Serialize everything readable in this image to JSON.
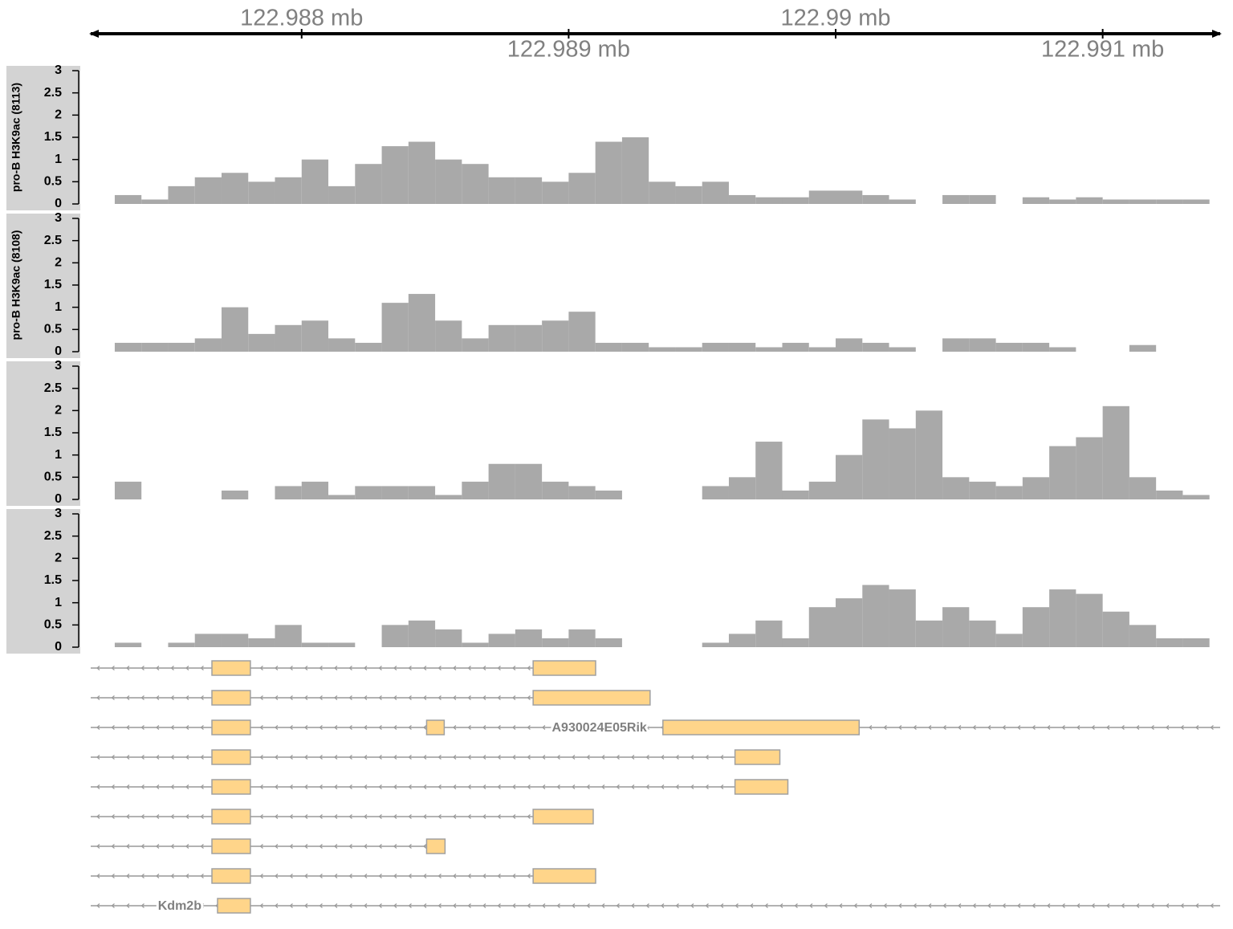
{
  "chart_data": [
    {
      "type": "axis",
      "xlim": [
        122.98721,
        122.99144
      ],
      "xticks": [
        {
          "value": 122.988,
          "label": "122.988 mb"
        },
        {
          "value": 122.989,
          "label": "122.989 mb"
        },
        {
          "value": 122.99,
          "label": "122.99 mb"
        },
        {
          "value": 122.991,
          "label": "122.991 mb"
        }
      ]
    },
    {
      "type": "histogram",
      "ylabel": "pro-B H3K9ac (8113)",
      "color": "#a9a9a9",
      "ylim": [
        0,
        3
      ],
      "yticks": [
        0,
        0.5,
        1,
        1.5,
        2,
        2.5,
        3
      ],
      "bins": [
        122.9873,
        122.9874,
        122.9875,
        122.9876,
        122.9877,
        122.9878,
        122.9879,
        122.988,
        122.9881,
        122.9882,
        122.9883,
        122.9884,
        122.9885,
        122.9886,
        122.9887,
        122.9888,
        122.9889,
        122.989,
        122.9891,
        122.9892,
        122.9893,
        122.9894,
        122.9895,
        122.9896,
        122.9897,
        122.9898,
        122.9899,
        122.99,
        122.9901,
        122.9902,
        122.9903,
        122.9904,
        122.9905,
        122.9906,
        122.9907,
        122.9908,
        122.9909,
        122.991,
        122.9911,
        122.9912,
        122.9913,
        122.9914
      ],
      "values": [
        0.2,
        0.1,
        0.4,
        0.6,
        0.7,
        0.5,
        0.6,
        1.0,
        0.4,
        0.9,
        1.3,
        1.4,
        1.0,
        0.9,
        0.6,
        0.6,
        0.5,
        0.7,
        1.4,
        1.5,
        0.5,
        0.4,
        0.5,
        0.2,
        0.15,
        0.15,
        0.3,
        0.3,
        0.2,
        0.1,
        0,
        0.2,
        0.2,
        0,
        0.15,
        0.1,
        0.15,
        0.1,
        0.1,
        0.1,
        0.1
      ]
    },
    {
      "type": "histogram",
      "ylabel": "pro-B H3K9ac (8108)",
      "color": "#a9a9a9",
      "ylim": [
        0,
        3
      ],
      "yticks": [
        0,
        0.5,
        1,
        1.5,
        2,
        2.5,
        3
      ],
      "bins": [
        122.9873,
        122.9874,
        122.9875,
        122.9876,
        122.9877,
        122.9878,
        122.9879,
        122.988,
        122.9881,
        122.9882,
        122.9883,
        122.9884,
        122.9885,
        122.9886,
        122.9887,
        122.9888,
        122.9889,
        122.989,
        122.9891,
        122.9892,
        122.9893,
        122.9894,
        122.9895,
        122.9896,
        122.9897,
        122.9898,
        122.9899,
        122.99,
        122.9901,
        122.9902,
        122.9903,
        122.9904,
        122.9905,
        122.9906,
        122.9907,
        122.9908,
        122.9909,
        122.991,
        122.9911,
        122.9912,
        122.9913,
        122.9914
      ],
      "values": [
        0.2,
        0.2,
        0.2,
        0.3,
        1.0,
        0.4,
        0.6,
        0.7,
        0.3,
        0.2,
        1.1,
        1.3,
        0.7,
        0.3,
        0.6,
        0.6,
        0.7,
        0.9,
        0.2,
        0.2,
        0.1,
        0.1,
        0.2,
        0.2,
        0.1,
        0.2,
        0.1,
        0.3,
        0.2,
        0.1,
        0,
        0.3,
        0.3,
        0.2,
        0.2,
        0.1,
        0,
        0,
        0.15,
        0,
        0
      ]
    },
    {
      "type": "histogram",
      "color": "#a9a9a9",
      "ylim": [
        0,
        3
      ],
      "yticks": [
        0,
        0.5,
        1,
        1.5,
        2,
        2.5,
        3
      ],
      "bins": [
        122.9873,
        122.9874,
        122.9875,
        122.9876,
        122.9877,
        122.9878,
        122.9879,
        122.988,
        122.9881,
        122.9882,
        122.9883,
        122.9884,
        122.9885,
        122.9886,
        122.9887,
        122.9888,
        122.9889,
        122.989,
        122.9891,
        122.9892,
        122.9893,
        122.9894,
        122.9895,
        122.9896,
        122.9897,
        122.9898,
        122.9899,
        122.99,
        122.9901,
        122.9902,
        122.9903,
        122.9904,
        122.9905,
        122.9906,
        122.9907,
        122.9908,
        122.9909,
        122.991,
        122.9911,
        122.9912,
        122.9913,
        122.9914
      ],
      "values": [
        0.4,
        0,
        0,
        0,
        0.2,
        0,
        0.3,
        0.4,
        0.1,
        0.3,
        0.3,
        0.3,
        0.1,
        0.4,
        0.8,
        0.8,
        0.4,
        0.3,
        0.2,
        0,
        0,
        0,
        0.3,
        0.5,
        1.3,
        0.2,
        0.4,
        1.0,
        1.8,
        1.6,
        2.0,
        0.5,
        0.4,
        0.3,
        0.5,
        1.2,
        1.4,
        2.1,
        0.5,
        0.2,
        0.1
      ]
    },
    {
      "type": "histogram",
      "color": "#a9a9a9",
      "ylim": [
        0,
        3
      ],
      "yticks": [
        0,
        0.5,
        1,
        1.5,
        2,
        2.5,
        3
      ],
      "bins": [
        122.9873,
        122.9874,
        122.9875,
        122.9876,
        122.9877,
        122.9878,
        122.9879,
        122.988,
        122.9881,
        122.9882,
        122.9883,
        122.9884,
        122.9885,
        122.9886,
        122.9887,
        122.9888,
        122.9889,
        122.989,
        122.9891,
        122.9892,
        122.9893,
        122.9894,
        122.9895,
        122.9896,
        122.9897,
        122.9898,
        122.9899,
        122.99,
        122.9901,
        122.9902,
        122.9903,
        122.9904,
        122.9905,
        122.9906,
        122.9907,
        122.9908,
        122.9909,
        122.991,
        122.9911,
        122.9912,
        122.9913,
        122.9914
      ],
      "values": [
        0.1,
        0,
        0.1,
        0.3,
        0.3,
        0.2,
        0.5,
        0.1,
        0.1,
        0,
        0.5,
        0.6,
        0.4,
        0.1,
        0.3,
        0.4,
        0.2,
        0.4,
        0.2,
        0,
        0,
        0,
        0.1,
        0.3,
        0.6,
        0.2,
        0.9,
        1.1,
        1.4,
        1.3,
        0.6,
        0.9,
        0.6,
        0.3,
        0.9,
        1.3,
        1.2,
        0.8,
        0.5,
        0.2,
        0.2
      ]
    },
    {
      "type": "gene",
      "color": "#ffd58a",
      "transcripts": [
        {
          "start": 122.98721,
          "end": 122.989101,
          "exons": [
            [
              122.987664,
              122.987808
            ],
            [
              122.988867,
              122.989101
            ]
          ]
        },
        {
          "start": 122.98721,
          "end": 122.989305,
          "exons": [
            [
              122.987664,
              122.987808
            ],
            [
              122.988867,
              122.989305
            ]
          ]
        },
        {
          "start": 122.98721,
          "end": 122.99144,
          "exons": [
            [
              122.987664,
              122.987808
            ],
            [
              122.988468,
              122.988534
            ],
            [
              122.989353,
              122.990088
            ]
          ],
          "label": "A930024E05Rik"
        },
        {
          "start": 122.98721,
          "end": 122.989791,
          "exons": [
            [
              122.987664,
              122.987808
            ],
            [
              122.989623,
              122.989791
            ]
          ]
        },
        {
          "start": 122.98721,
          "end": 122.989821,
          "exons": [
            [
              122.987664,
              122.987808
            ],
            [
              122.989623,
              122.989821
            ]
          ]
        },
        {
          "start": 122.98721,
          "end": 122.989092,
          "exons": [
            [
              122.987664,
              122.987808
            ],
            [
              122.988867,
              122.989092
            ]
          ]
        },
        {
          "start": 122.98721,
          "end": 122.988537,
          "exons": [
            [
              122.987664,
              122.987808
            ],
            [
              122.988468,
              122.988537
            ]
          ]
        },
        {
          "start": 122.98721,
          "end": 122.989101,
          "exons": [
            [
              122.987664,
              122.987808
            ],
            [
              122.988867,
              122.989101
            ]
          ]
        },
        {
          "start": 122.98721,
          "end": 122.99144,
          "exons": [
            [
              122.987685,
              122.987808
            ]
          ],
          "label": "Kdm2b"
        }
      ]
    }
  ]
}
